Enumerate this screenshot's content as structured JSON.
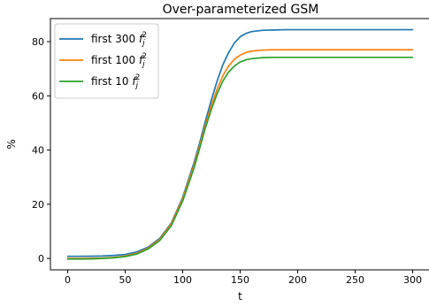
{
  "chart_data": {
    "type": "line",
    "title": "Over-parameterized GSM",
    "xlabel": "t",
    "ylabel": "%",
    "xlim": [
      -15,
      315
    ],
    "ylim": [
      -4.2,
      88.5
    ],
    "xticks": [
      0,
      50,
      100,
      150,
      200,
      250,
      300
    ],
    "yticks": [
      0,
      20,
      40,
      60,
      80
    ],
    "grid": false,
    "legend_position": "top-left",
    "series": [
      {
        "name": "first 300 f_j^2",
        "name_main": "first 300 ",
        "name_base": "f",
        "name_sub": "j",
        "name_sup": "2",
        "color": "#1f77b4",
        "x": [
          0,
          10,
          20,
          30,
          40,
          50,
          60,
          70,
          80,
          90,
          100,
          110,
          115,
          120,
          125,
          130,
          135,
          140,
          145,
          150,
          155,
          160,
          170,
          180,
          190,
          200,
          225,
          250,
          275,
          300
        ],
        "y": [
          0.8,
          0.8,
          0.82,
          0.9,
          1.1,
          1.5,
          2.4,
          4.2,
          7.4,
          13.0,
          22.5,
          35.5,
          43.0,
          51.0,
          58.5,
          65.5,
          71.5,
          76.0,
          79.5,
          81.8,
          83.0,
          83.7,
          84.2,
          84.3,
          84.4,
          84.4,
          84.4,
          84.4,
          84.4,
          84.4
        ]
      },
      {
        "name": "first 100 f_j^2",
        "name_main": "first 100 ",
        "name_base": "f",
        "name_sub": "j",
        "name_sup": "2",
        "color": "#ff7f0e",
        "x": [
          0,
          10,
          20,
          30,
          40,
          50,
          60,
          70,
          80,
          90,
          100,
          110,
          115,
          120,
          125,
          130,
          135,
          140,
          145,
          150,
          155,
          160,
          170,
          180,
          190,
          200,
          225,
          250,
          275,
          300
        ],
        "y": [
          0.0,
          0.0,
          0.05,
          0.15,
          0.4,
          0.9,
          1.9,
          3.8,
          7.0,
          12.6,
          22.0,
          34.5,
          42.0,
          49.5,
          56.5,
          62.5,
          67.5,
          71.0,
          73.5,
          75.0,
          76.0,
          76.5,
          76.9,
          77.0,
          77.0,
          77.0,
          77.0,
          77.0,
          77.0,
          77.0
        ]
      },
      {
        "name": "first 10 f_j^2",
        "name_main": "first 10 ",
        "name_base": "f",
        "name_sub": "j",
        "name_sup": "2",
        "color": "#2ca02c",
        "x": [
          0,
          10,
          20,
          30,
          40,
          50,
          60,
          70,
          80,
          90,
          100,
          110,
          115,
          120,
          125,
          130,
          135,
          140,
          145,
          150,
          155,
          160,
          170,
          180,
          190,
          200,
          225,
          250,
          275,
          300
        ],
        "y": [
          -0.2,
          -0.2,
          -0.15,
          0.0,
          0.25,
          0.7,
          1.6,
          3.5,
          6.6,
          12.0,
          21.2,
          33.5,
          41.0,
          48.5,
          55.0,
          60.8,
          65.5,
          68.8,
          71.0,
          72.5,
          73.3,
          73.7,
          74.1,
          74.2,
          74.2,
          74.2,
          74.2,
          74.2,
          74.2,
          74.2
        ]
      }
    ]
  }
}
